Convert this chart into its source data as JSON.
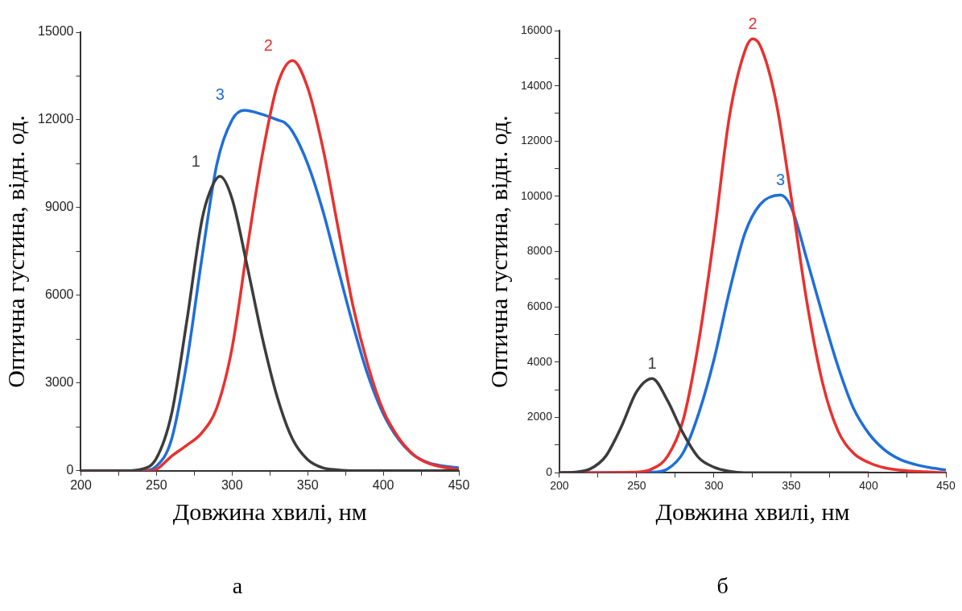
{
  "chart_data": [
    {
      "type": "line",
      "xlabel": "Довжина хвилі, нм",
      "ylabel": "Оптична густина, відн. од.",
      "annotations": [
        "а"
      ],
      "xlim": [
        200,
        450
      ],
      "ylim": [
        0,
        15000
      ],
      "xticks": [
        200,
        {
          "value": 225,
          "label": null
        },
        250,
        {
          "value": 275,
          "label": null
        },
        300,
        {
          "value": 325,
          "label": null
        },
        350,
        {
          "value": 375,
          "label": null
        },
        400,
        {
          "value": 425,
          "label": null
        },
        450
      ],
      "yticks": [
        0,
        {
          "value": 1500,
          "label": null
        },
        3000,
        {
          "value": 4500,
          "label": null
        },
        6000,
        {
          "value": 7500,
          "label": null
        },
        9000,
        {
          "value": 10500,
          "label": null
        },
        12000,
        {
          "value": 13500,
          "label": null
        },
        15000
      ],
      "grid": false,
      "legend": false,
      "marker": "none",
      "line_style": "solid",
      "series": [
        {
          "name": "1",
          "color": "#3c3c3c",
          "x": [
            200,
            230,
            240,
            250,
            260,
            270,
            280,
            285,
            292,
            300,
            310,
            320,
            330,
            340,
            350,
            360,
            370,
            380,
            450
          ],
          "values": [
            0,
            0,
            50,
            430,
            1950,
            5100,
            8560,
            9500,
            10070,
            9300,
            7000,
            4550,
            2500,
            1080,
            380,
            100,
            30,
            0,
            0
          ]
        },
        {
          "name": "2",
          "color": "#e8312f",
          "x": [
            200,
            245,
            250,
            260,
            270,
            280,
            290,
            300,
            310,
            320,
            330,
            340,
            350,
            360,
            370,
            380,
            390,
            400,
            410,
            420,
            430,
            440,
            450
          ],
          "values": [
            0,
            0,
            50,
            500,
            870,
            1300,
            2170,
            4200,
            7600,
            10800,
            13200,
            14030,
            13100,
            11050,
            8340,
            5630,
            3580,
            2060,
            1140,
            550,
            250,
            120,
            50
          ]
        },
        {
          "name": "3",
          "color": "#1e6fd9",
          "x": [
            200,
            240,
            250,
            260,
            270,
            280,
            290,
            300,
            308,
            320,
            330,
            335,
            340,
            350,
            360,
            370,
            380,
            390,
            400,
            410,
            420,
            430,
            440,
            450
          ],
          "values": [
            0,
            0,
            160,
            1080,
            3700,
            7260,
            10500,
            12000,
            12330,
            12190,
            12000,
            11900,
            11600,
            10500,
            8900,
            6930,
            4980,
            3250,
            1950,
            1080,
            540,
            270,
            160,
            100
          ]
        }
      ]
    },
    {
      "type": "line",
      "xlabel": "Довжина хвилі, нм",
      "ylabel": "Оптична густина, відн. од.",
      "annotations": [
        "б"
      ],
      "xlim": [
        200,
        450
      ],
      "ylim": [
        0,
        16000
      ],
      "xticks": [
        200,
        {
          "value": 225,
          "label": null
        },
        250,
        {
          "value": 275,
          "label": null
        },
        300,
        {
          "value": 325,
          "label": null
        },
        350,
        {
          "value": 375,
          "label": null
        },
        400,
        {
          "value": 425,
          "label": null
        },
        450
      ],
      "yticks": [
        0,
        {
          "value": 1000,
          "label": null
        },
        2000,
        {
          "value": 3000,
          "label": null
        },
        4000,
        {
          "value": 5000,
          "label": null
        },
        6000,
        {
          "value": 7000,
          "label": null
        },
        8000,
        {
          "value": 9000,
          "label": null
        },
        10000,
        {
          "value": 11000,
          "label": null
        },
        12000,
        {
          "value": 13000,
          "label": null
        },
        14000,
        {
          "value": 15000,
          "label": null
        },
        16000
      ],
      "grid": false,
      "legend": false,
      "marker": "none",
      "line_style": "solid",
      "series": [
        {
          "name": "1",
          "color": "#3c3c3c",
          "x": [
            200,
            210,
            220,
            230,
            240,
            250,
            260,
            270,
            280,
            290,
            300,
            310,
            320,
            400
          ],
          "values": [
            0,
            20,
            140,
            600,
            1660,
            2940,
            3410,
            2600,
            1430,
            550,
            200,
            50,
            0,
            0
          ]
        },
        {
          "name": "2",
          "color": "#e8312f",
          "x": [
            200,
            250,
            260,
            270,
            280,
            290,
            300,
            310,
            320,
            325,
            330,
            340,
            350,
            360,
            370,
            380,
            390,
            400,
            410,
            420,
            430,
            450
          ],
          "values": [
            0,
            20,
            140,
            600,
            1900,
            4700,
            8550,
            12900,
            15270,
            15700,
            15440,
            13460,
            9950,
            6200,
            3300,
            1540,
            720,
            370,
            180,
            90,
            50,
            0
          ]
        },
        {
          "name": "3",
          "color": "#1e6fd9",
          "x": [
            200,
            260,
            270,
            280,
            290,
            300,
            310,
            320,
            330,
            343,
            350,
            360,
            370,
            380,
            390,
            400,
            410,
            420,
            430,
            440,
            450
          ],
          "values": [
            0,
            20,
            140,
            720,
            2130,
            4100,
            6570,
            8670,
            9720,
            10050,
            9600,
            7730,
            5750,
            3880,
            2360,
            1430,
            840,
            490,
            300,
            180,
            100
          ]
        }
      ]
    }
  ]
}
